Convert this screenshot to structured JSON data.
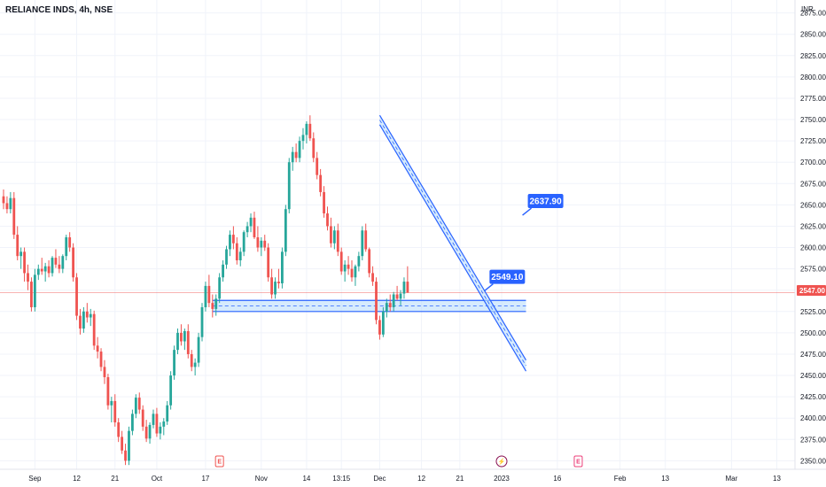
{
  "header": {
    "title": "RELIANCE INDS, 4h, NSE",
    "currency": "INR"
  },
  "colors": {
    "up": "#26a69a",
    "down": "#ef5350",
    "grid": "#f0f3fa",
    "drawing": "#2962ff",
    "channel_fill": "#bbdefb",
    "last_price_line": "#ef5350"
  },
  "chart_data": {
    "type": "candlestick",
    "symbol": "RELIANCE INDS",
    "interval": "4h",
    "exchange": "NSE",
    "ylim": [
      2340,
      2885
    ],
    "y_ticks": [
      "2350.00",
      "2375.00",
      "2400.00",
      "2425.00",
      "2450.00",
      "2475.00",
      "2500.00",
      "2525.00",
      "2550.00",
      "2575.00",
      "2600.00",
      "2625.00",
      "2650.00",
      "2675.00",
      "2700.00",
      "2725.00",
      "2750.00",
      "2775.00",
      "2800.00",
      "2825.00",
      "2850.00",
      "2875.00"
    ],
    "x_ticks": [
      {
        "label": "Sep",
        "index": 9
      },
      {
        "label": "12",
        "index": 21
      },
      {
        "label": "21",
        "index": 32
      },
      {
        "label": "Oct",
        "index": 44
      },
      {
        "label": "17",
        "index": 58
      },
      {
        "label": "Nov",
        "index": 74
      },
      {
        "label": "14",
        "index": 87
      },
      {
        "label": "13:15",
        "index": 97
      },
      {
        "label": "Dec",
        "index": 108
      },
      {
        "label": "12",
        "index": 120
      },
      {
        "label": "21",
        "index": 131
      },
      {
        "label": "2023",
        "index": 143
      },
      {
        "label": "16",
        "index": 159
      },
      {
        "label": "Feb",
        "index": 177
      },
      {
        "label": "13",
        "index": 190
      },
      {
        "label": "Mar",
        "index": 209
      },
      {
        "label": "13",
        "index": 222
      }
    ],
    "last_price": "2547.00",
    "last_price_value": 2547,
    "candles": [
      [
        2660,
        2668,
        2645,
        2652
      ],
      [
        2652,
        2660,
        2640,
        2645
      ],
      [
        2645,
        2665,
        2640,
        2658
      ],
      [
        2658,
        2665,
        2610,
        2615
      ],
      [
        2615,
        2625,
        2585,
        2590
      ],
      [
        2590,
        2600,
        2575,
        2595
      ],
      [
        2595,
        2600,
        2560,
        2570
      ],
      [
        2570,
        2580,
        2550,
        2560
      ],
      [
        2560,
        2565,
        2525,
        2530
      ],
      [
        2530,
        2575,
        2525,
        2568
      ],
      [
        2568,
        2580,
        2562,
        2575
      ],
      [
        2575,
        2588,
        2568,
        2572
      ],
      [
        2572,
        2582,
        2560,
        2578
      ],
      [
        2578,
        2585,
        2565,
        2570
      ],
      [
        2570,
        2590,
        2566,
        2588
      ],
      [
        2588,
        2598,
        2576,
        2580
      ],
      [
        2580,
        2590,
        2570,
        2575
      ],
      [
        2575,
        2592,
        2570,
        2590
      ],
      [
        2590,
        2615,
        2585,
        2612
      ],
      [
        2612,
        2618,
        2595,
        2600
      ],
      [
        2600,
        2605,
        2560,
        2565
      ],
      [
        2565,
        2570,
        2515,
        2520
      ],
      [
        2520,
        2528,
        2498,
        2505
      ],
      [
        2505,
        2530,
        2500,
        2525
      ],
      [
        2525,
        2535,
        2512,
        2518
      ],
      [
        2518,
        2528,
        2508,
        2522
      ],
      [
        2522,
        2526,
        2480,
        2485
      ],
      [
        2485,
        2495,
        2470,
        2478
      ],
      [
        2478,
        2482,
        2455,
        2460
      ],
      [
        2460,
        2468,
        2440,
        2448
      ],
      [
        2448,
        2452,
        2410,
        2415
      ],
      [
        2415,
        2425,
        2395,
        2420
      ],
      [
        2420,
        2428,
        2390,
        2395
      ],
      [
        2395,
        2400,
        2372,
        2378
      ],
      [
        2378,
        2385,
        2358,
        2362
      ],
      [
        2362,
        2370,
        2345,
        2350
      ],
      [
        2350,
        2390,
        2345,
        2385
      ],
      [
        2385,
        2410,
        2380,
        2405
      ],
      [
        2405,
        2428,
        2400,
        2424
      ],
      [
        2424,
        2430,
        2405,
        2410
      ],
      [
        2410,
        2415,
        2385,
        2390
      ],
      [
        2390,
        2398,
        2372,
        2376
      ],
      [
        2376,
        2395,
        2370,
        2392
      ],
      [
        2392,
        2410,
        2388,
        2405
      ],
      [
        2405,
        2412,
        2378,
        2382
      ],
      [
        2382,
        2395,
        2375,
        2390
      ],
      [
        2390,
        2400,
        2380,
        2396
      ],
      [
        2396,
        2420,
        2392,
        2415
      ],
      [
        2415,
        2455,
        2410,
        2450
      ],
      [
        2450,
        2485,
        2445,
        2480
      ],
      [
        2480,
        2505,
        2475,
        2500
      ],
      [
        2500,
        2510,
        2485,
        2490
      ],
      [
        2490,
        2505,
        2480,
        2502
      ],
      [
        2502,
        2510,
        2470,
        2475
      ],
      [
        2475,
        2480,
        2455,
        2460
      ],
      [
        2460,
        2470,
        2450,
        2465
      ],
      [
        2465,
        2500,
        2460,
        2495
      ],
      [
        2495,
        2535,
        2490,
        2530
      ],
      [
        2530,
        2560,
        2525,
        2555
      ],
      [
        2555,
        2568,
        2530,
        2535
      ],
      [
        2535,
        2545,
        2518,
        2528
      ],
      [
        2528,
        2545,
        2520,
        2540
      ],
      [
        2540,
        2570,
        2535,
        2565
      ],
      [
        2565,
        2585,
        2560,
        2580
      ],
      [
        2580,
        2602,
        2575,
        2598
      ],
      [
        2598,
        2620,
        2590,
        2615
      ],
      [
        2615,
        2625,
        2598,
        2605
      ],
      [
        2605,
        2612,
        2580,
        2585
      ],
      [
        2585,
        2600,
        2578,
        2595
      ],
      [
        2595,
        2620,
        2590,
        2618
      ],
      [
        2618,
        2630,
        2612,
        2625
      ],
      [
        2625,
        2640,
        2618,
        2635
      ],
      [
        2635,
        2642,
        2610,
        2612
      ],
      [
        2612,
        2625,
        2595,
        2600
      ],
      [
        2600,
        2612,
        2590,
        2608
      ],
      [
        2608,
        2615,
        2596,
        2600
      ],
      [
        2600,
        2605,
        2560,
        2565
      ],
      [
        2565,
        2575,
        2540,
        2545
      ],
      [
        2545,
        2565,
        2540,
        2560
      ],
      [
        2560,
        2575,
        2552,
        2558
      ],
      [
        2558,
        2600,
        2552,
        2595
      ],
      [
        2595,
        2650,
        2590,
        2645
      ],
      [
        2645,
        2705,
        2640,
        2700
      ],
      [
        2700,
        2718,
        2690,
        2712
      ],
      [
        2712,
        2722,
        2700,
        2705
      ],
      [
        2705,
        2730,
        2700,
        2725
      ],
      [
        2725,
        2740,
        2715,
        2732
      ],
      [
        2732,
        2748,
        2722,
        2745
      ],
      [
        2745,
        2755,
        2725,
        2728
      ],
      [
        2728,
        2735,
        2700,
        2705
      ],
      [
        2705,
        2712,
        2680,
        2685
      ],
      [
        2685,
        2692,
        2660,
        2665
      ],
      [
        2665,
        2672,
        2635,
        2640
      ],
      [
        2640,
        2648,
        2620,
        2625
      ],
      [
        2625,
        2635,
        2600,
        2605
      ],
      [
        2605,
        2625,
        2598,
        2620
      ],
      [
        2620,
        2628,
        2590,
        2595
      ],
      [
        2595,
        2600,
        2568,
        2572
      ],
      [
        2572,
        2585,
        2560,
        2580
      ],
      [
        2580,
        2590,
        2568,
        2575
      ],
      [
        2575,
        2585,
        2560,
        2565
      ],
      [
        2565,
        2580,
        2555,
        2578
      ],
      [
        2578,
        2595,
        2572,
        2590
      ],
      [
        2590,
        2625,
        2585,
        2620
      ],
      [
        2620,
        2628,
        2595,
        2598
      ],
      [
        2598,
        2600,
        2565,
        2570
      ],
      [
        2570,
        2578,
        2555,
        2560
      ],
      [
        2560,
        2565,
        2510,
        2515
      ],
      [
        2515,
        2520,
        2492,
        2498
      ],
      [
        2498,
        2530,
        2495,
        2525
      ],
      [
        2525,
        2540,
        2518,
        2535
      ],
      [
        2535,
        2545,
        2525,
        2530
      ],
      [
        2530,
        2548,
        2525,
        2545
      ],
      [
        2545,
        2555,
        2538,
        2540
      ],
      [
        2540,
        2550,
        2532,
        2546
      ],
      [
        2546,
        2565,
        2540,
        2560
      ],
      [
        2560,
        2578,
        2552,
        2547
      ]
    ],
    "horizontal_channel": {
      "upper": 2538,
      "lower": 2525,
      "start_index": 60,
      "end_index": 150
    },
    "falling_channel": {
      "upper_start": [
        108,
        2755
      ],
      "upper_end": [
        150,
        2468
      ],
      "lower_start": [
        108,
        2744
      ],
      "lower_end": [
        150,
        2455
      ]
    },
    "callouts": [
      {
        "label": "2549.10",
        "anchor_index": 138,
        "anchor_value": 2549
      },
      {
        "label": "2637.90",
        "anchor_index": 149,
        "anchor_value": 2637.9
      }
    ],
    "events": [
      {
        "symbol": "E",
        "index": 62,
        "color": "#ef5350"
      },
      {
        "symbol": "⚡",
        "index": 143,
        "color": "#880e4f"
      },
      {
        "symbol": "E",
        "index": 165,
        "color": "#ec407a"
      }
    ]
  }
}
